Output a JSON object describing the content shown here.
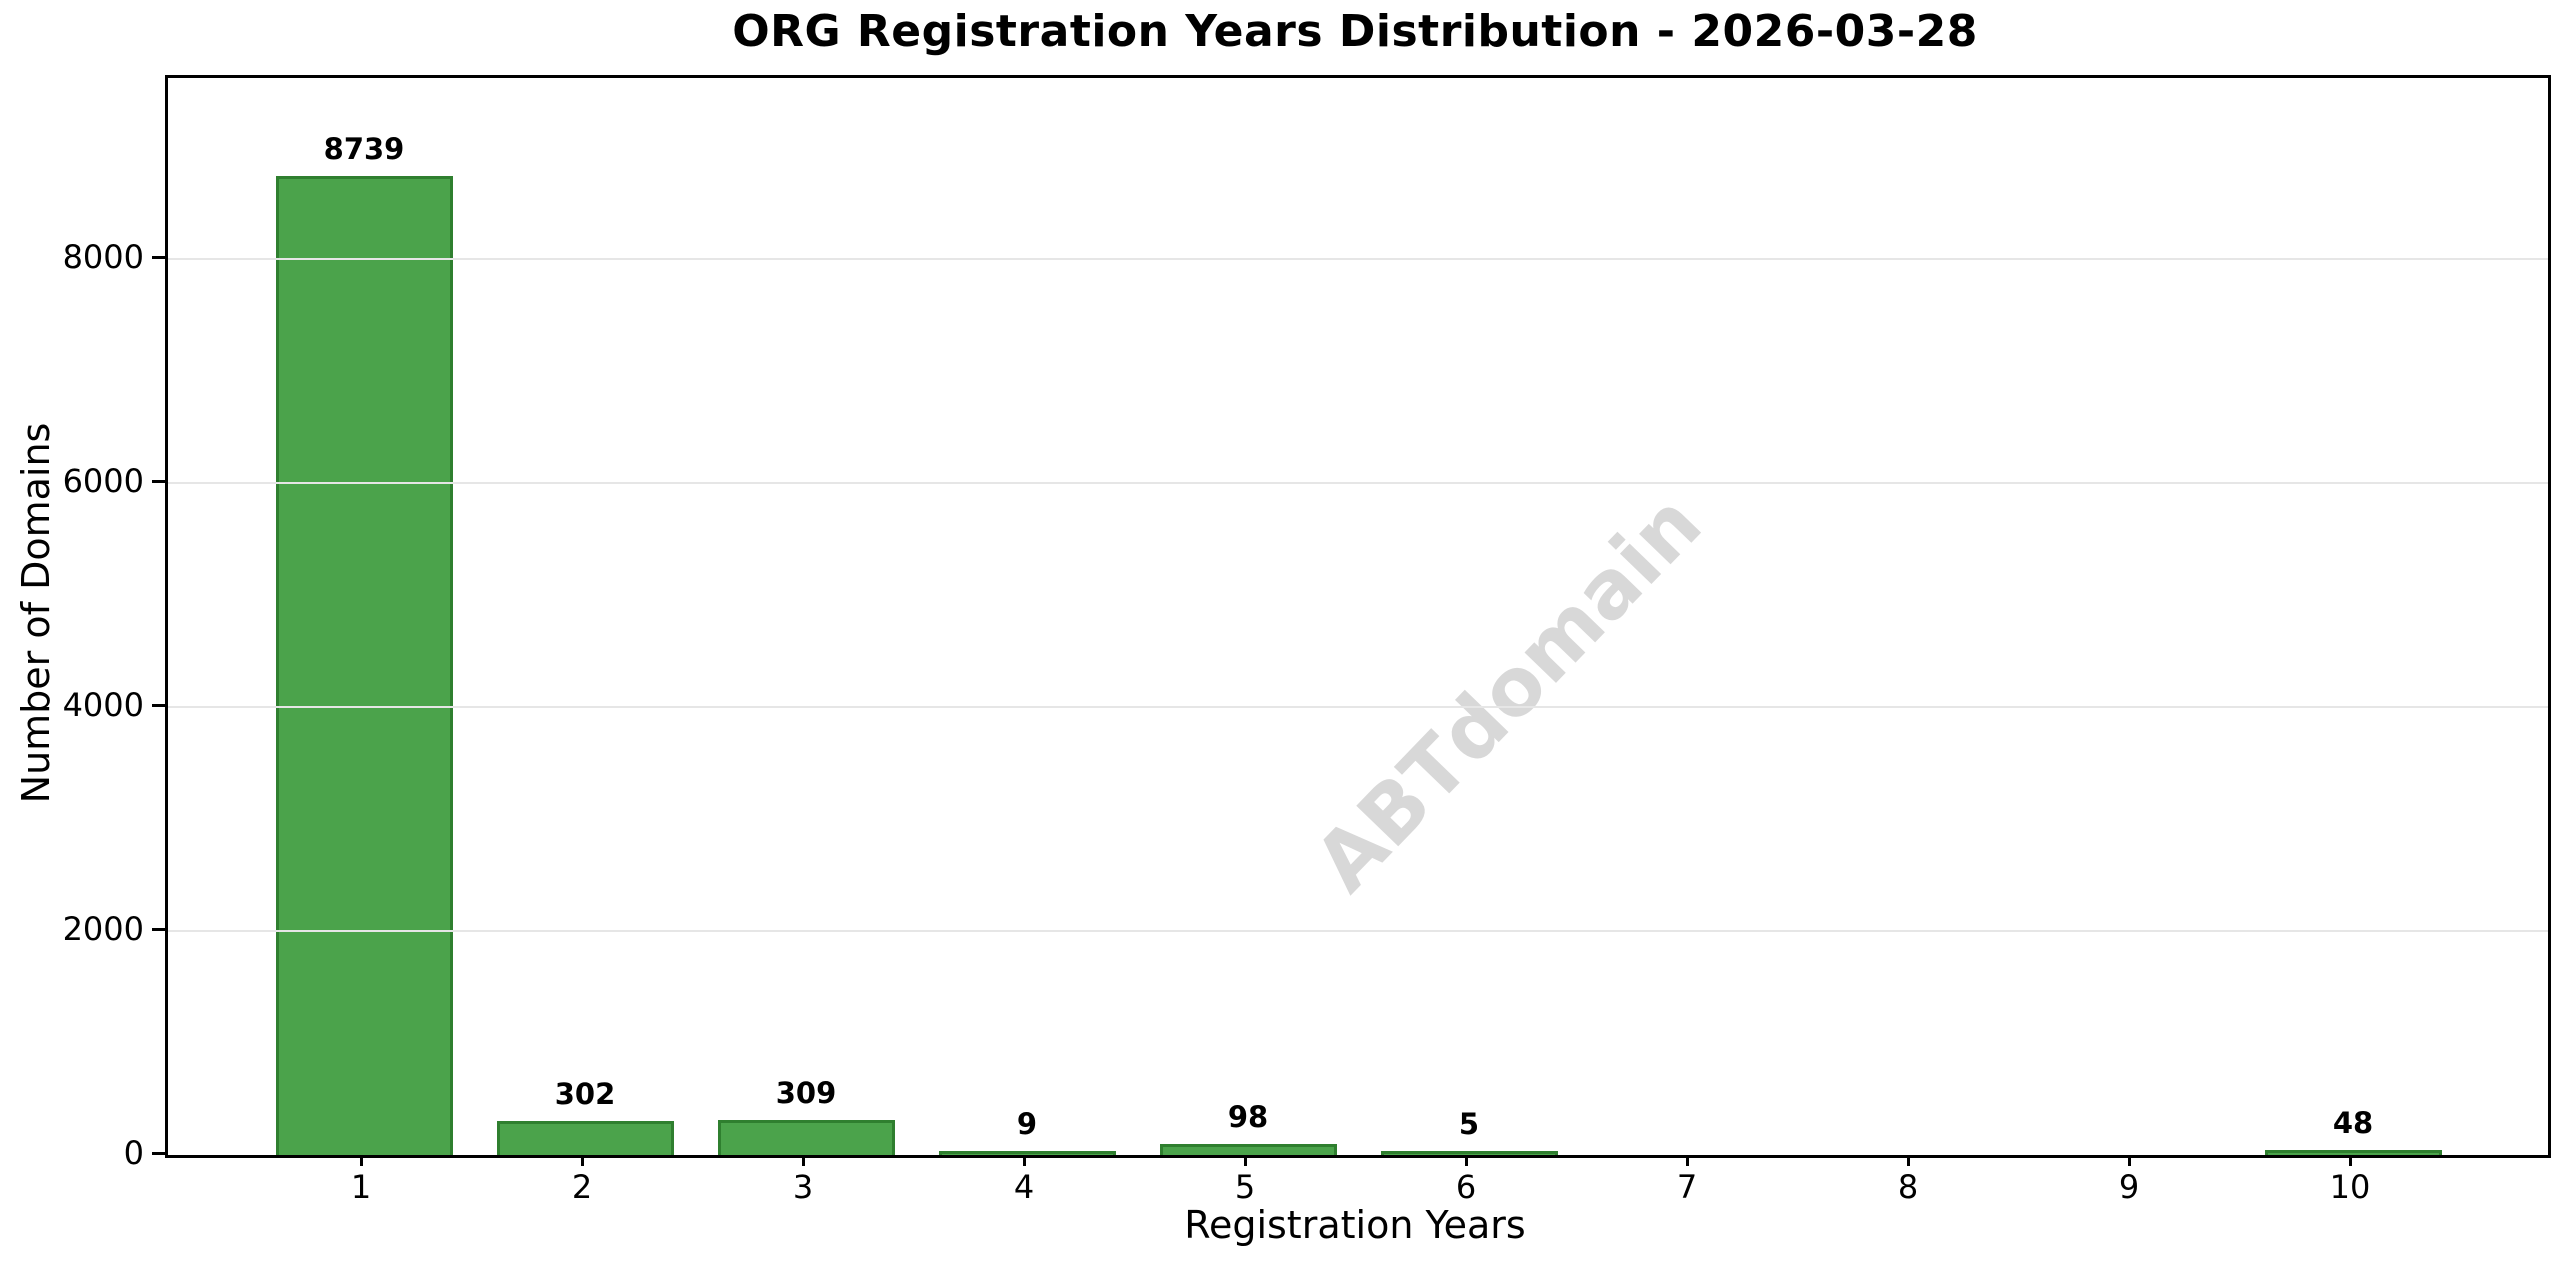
{
  "chart_data": {
    "type": "bar",
    "title": "ORG Registration Years Distribution - 2026-03-28",
    "xlabel": "Registration Years",
    "ylabel": "Number of Domains",
    "categories": [
      "1",
      "2",
      "3",
      "4",
      "5",
      "6",
      "7",
      "8",
      "9",
      "10"
    ],
    "values": [
      8739,
      302,
      309,
      9,
      98,
      5,
      0,
      0,
      0,
      48
    ],
    "bar_value_labels": [
      "8739",
      "302",
      "309",
      "9",
      "98",
      "5",
      "",
      "",
      "",
      "48"
    ],
    "yticks": [
      0,
      2000,
      4000,
      6000,
      8000
    ],
    "ytick_labels": [
      "0",
      "2000",
      "4000",
      "6000",
      "8000"
    ],
    "ylim": [
      0,
      9613
    ],
    "grid": "horizontal",
    "legend": "none",
    "watermark": "ABTdomain",
    "colors": {
      "bar_fill": "#4BA34B",
      "bar_edge": "#2F7F2F",
      "grid": "#E6E6E6",
      "watermark": "#D8D8D8",
      "text": "#000000",
      "background": "#FFFFFF"
    }
  }
}
